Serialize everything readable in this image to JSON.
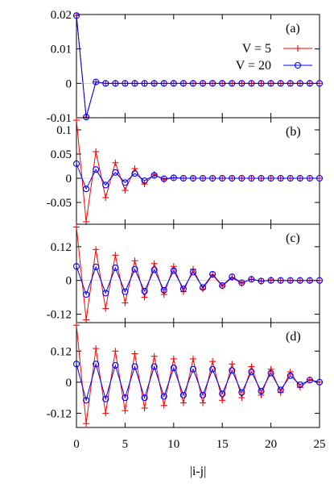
{
  "chart_data": {
    "type": "line",
    "xlabel": "|i-j|",
    "xlim": [
      0,
      25
    ],
    "xticks": [
      0,
      5,
      10,
      15,
      20,
      25
    ],
    "legend": {
      "placement": "top-right of panel (a)",
      "entries": [
        {
          "name": "V = 5",
          "color": "#ff0000",
          "marker": "plus"
        },
        {
          "name": "V = 20",
          "color": "#0000ff",
          "marker": "circle"
        }
      ]
    },
    "panels": [
      {
        "label": "(a)",
        "ylim": [
          -0.01,
          0.02
        ],
        "yticks": [
          -0.01,
          0,
          0.01,
          0.02
        ],
        "ytick_labels": [
          "-0.01",
          "0",
          "0.01",
          "0.02"
        ],
        "x": [
          0,
          1,
          2,
          3,
          4,
          5,
          6,
          7,
          8,
          9,
          10,
          11,
          12,
          13,
          14,
          15,
          16,
          17,
          18,
          19,
          20,
          21,
          22,
          23,
          24,
          25
        ],
        "series": [
          {
            "name": "V = 5",
            "values": [
              0.0197,
              -0.0098,
              0.0004,
              0,
              0,
              0,
              0,
              0,
              0,
              0,
              0,
              0,
              0,
              0,
              0,
              0,
              0,
              0,
              0,
              0,
              0,
              0,
              0,
              0,
              0,
              0
            ]
          },
          {
            "name": "V = 20",
            "values": [
              0.0197,
              -0.0098,
              0.0004,
              0,
              0,
              0,
              0,
              0,
              0,
              0,
              0,
              0,
              0,
              0,
              0,
              0,
              0,
              0,
              0,
              0,
              0,
              0,
              0,
              0,
              0,
              0
            ]
          }
        ]
      },
      {
        "label": "(b)",
        "ylim": [
          -0.095,
          0.125
        ],
        "yticks": [
          -0.05,
          0,
          0.05,
          0.1
        ],
        "ytick_labels": [
          "-0.05",
          "0",
          "0.05",
          "0.1"
        ],
        "x": [
          0,
          1,
          2,
          3,
          4,
          5,
          6,
          7,
          8,
          9,
          10,
          11,
          12,
          13,
          14,
          15,
          16,
          17,
          18,
          19,
          20,
          21,
          22,
          23,
          24,
          25
        ],
        "series": [
          {
            "name": "V = 5",
            "values": [
              0.12,
              -0.09,
              0.055,
              -0.04,
              0.032,
              -0.025,
              0.02,
              -0.012,
              0.008,
              -0.003,
              0.001,
              0,
              0,
              0,
              0,
              0,
              0,
              0,
              0,
              0,
              0,
              0,
              0,
              0,
              0,
              0
            ]
          },
          {
            "name": "V = 20",
            "values": [
              0.03,
              -0.022,
              0.018,
              -0.014,
              0.012,
              -0.009,
              0.01,
              -0.005,
              0.006,
              -0.001,
              0.001,
              0,
              0,
              0,
              0,
              0,
              0,
              0,
              0,
              0,
              0,
              0,
              0,
              0,
              0,
              0
            ]
          }
        ]
      },
      {
        "label": "(c)",
        "ylim": [
          -0.15,
          0.2
        ],
        "yticks": [
          -0.12,
          0,
          0.12
        ],
        "ytick_labels": [
          "-0.12",
          "0",
          "0.12"
        ],
        "x": [
          0,
          1,
          2,
          3,
          4,
          5,
          6,
          7,
          8,
          9,
          10,
          11,
          12,
          13,
          14,
          15,
          16,
          17,
          18,
          19,
          20,
          21,
          22,
          23,
          24,
          25
        ],
        "series": [
          {
            "name": "V = 5",
            "values": [
              0.19,
              -0.14,
              0.11,
              -0.1,
              0.09,
              -0.08,
              0.07,
              -0.06,
              0.06,
              -0.05,
              0.05,
              -0.04,
              0.04,
              -0.03,
              0.02,
              -0.02,
              0.01,
              -0.01,
              0.005,
              -0.003,
              0.002,
              0,
              0,
              0,
              0,
              0
            ]
          },
          {
            "name": "V = 20",
            "values": [
              0.05,
              -0.05,
              0.048,
              -0.045,
              0.045,
              -0.04,
              0.04,
              -0.038,
              0.038,
              -0.035,
              0.035,
              -0.03,
              0.03,
              -0.025,
              0.022,
              -0.018,
              0.013,
              -0.008,
              0.004,
              -0.002,
              0,
              0,
              0,
              0,
              0,
              0
            ]
          }
        ]
      },
      {
        "label": "(d)",
        "ylim": [
          -0.175,
          0.23
        ],
        "yticks": [
          -0.12,
          0,
          0.12
        ],
        "ytick_labels": [
          "-0.12",
          "0",
          "0.12"
        ],
        "x": [
          0,
          1,
          2,
          3,
          4,
          5,
          6,
          7,
          8,
          9,
          10,
          11,
          12,
          13,
          14,
          15,
          16,
          17,
          18,
          19,
          20,
          21,
          22,
          23,
          24,
          25
        ],
        "series": [
          {
            "name": "V = 5",
            "values": [
              0.22,
              -0.16,
              0.13,
              -0.12,
              0.12,
              -0.11,
              0.11,
              -0.1,
              0.1,
              -0.09,
              0.09,
              -0.08,
              0.09,
              -0.08,
              0.08,
              -0.07,
              0.07,
              -0.06,
              0.06,
              -0.05,
              0.05,
              -0.04,
              0.04,
              -0.02,
              0.01,
              0
            ]
          },
          {
            "name": "V = 20",
            "values": [
              0.07,
              -0.07,
              0.07,
              -0.065,
              0.065,
              -0.06,
              0.06,
              -0.06,
              0.06,
              -0.055,
              0.055,
              -0.05,
              0.05,
              -0.05,
              0.05,
              -0.045,
              0.045,
              -0.04,
              0.04,
              -0.035,
              0.035,
              -0.03,
              0.025,
              -0.01,
              0.008,
              0
            ]
          }
        ]
      }
    ]
  }
}
